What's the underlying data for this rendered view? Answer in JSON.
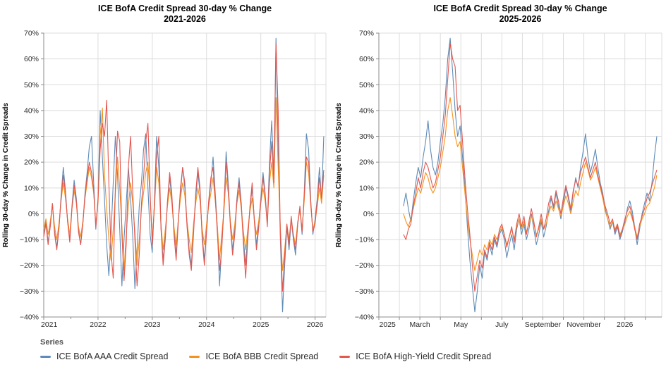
{
  "colors": {
    "aaa": "#5E8BB7",
    "bbb": "#F5921E",
    "hy": "#E4574F",
    "grid": "#DCDCDC",
    "axis": "#8C8C8C",
    "text": "#2B2B2B"
  },
  "legend": {
    "header": "Series",
    "items": [
      {
        "label": "ICE BofA AAA Credit Spread",
        "color_key": "aaa"
      },
      {
        "label": "ICE BofA BBB Credit Spread",
        "color_key": "bbb"
      },
      {
        "label": "ICE BofA High-Yield Credit Spread",
        "color_key": "hy"
      }
    ]
  },
  "chart_data": [
    {
      "type": "line",
      "title": [
        "ICE BofA Credit Spread 30-day % Change",
        "2021-2026"
      ],
      "ylabel": "Rolling 30-day % Change in Credit Spreads",
      "ylim": [
        -40,
        70
      ],
      "xlim": [
        2021.0,
        2026.2
      ],
      "grid": true,
      "legend_position": "bottom",
      "y_ticks": [
        {
          "value": 70,
          "label": "70%"
        },
        {
          "value": 60,
          "label": "60%"
        },
        {
          "value": 50,
          "label": "50%"
        },
        {
          "value": 40,
          "label": "40%"
        },
        {
          "value": 30,
          "label": "30%"
        },
        {
          "value": 20,
          "label": "20%"
        },
        {
          "value": 10,
          "label": "10%"
        },
        {
          "value": 0,
          "label": "0%"
        },
        {
          "value": -10,
          "label": "−10%"
        },
        {
          "value": -20,
          "label": "−20%"
        },
        {
          "value": -30,
          "label": "−30%"
        },
        {
          "value": -40,
          "label": "−40%"
        }
      ],
      "x_gridlines": [
        2022,
        2023,
        2024,
        2025,
        2026
      ],
      "x_ticks_major": [
        2021,
        2022,
        2023,
        2024,
        2025,
        2026
      ],
      "x_ticks_minor": [
        2021.5,
        2022.5,
        2023.5,
        2024.5,
        2025.5
      ],
      "x_tick_labels": [
        {
          "x": 2021.1,
          "text": "2021"
        },
        {
          "x": 2022,
          "text": "2022"
        },
        {
          "x": 2023,
          "text": "2023"
        },
        {
          "x": 2024,
          "text": "2024"
        },
        {
          "x": 2025,
          "text": "2025"
        },
        {
          "x": 2026,
          "text": "2026"
        }
      ],
      "series": [
        {
          "name": "ICE BofA AAA Credit Spread",
          "color_key": "aaa",
          "x_start": 2021.0,
          "x_step": 0.04,
          "values": [
            -8,
            -3,
            -11,
            -5,
            4,
            -7,
            -13,
            -6,
            7,
            18,
            9,
            -3,
            -10,
            3,
            13,
            6,
            -6,
            -12,
            -4,
            8,
            16,
            26,
            30,
            12,
            -6,
            6,
            40,
            22,
            5,
            -12,
            -24,
            -8,
            12,
            30,
            15,
            -6,
            -28,
            -10,
            4,
            18,
            6,
            -9,
            -29,
            -14,
            3,
            12,
            25,
            31,
            10,
            -8,
            -15,
            5,
            30,
            18,
            -5,
            -18,
            -8,
            4,
            14,
            6,
            -6,
            -16,
            -2,
            8,
            18,
            10,
            -4,
            -14,
            -20,
            -6,
            6,
            16,
            8,
            -8,
            -18,
            -6,
            4,
            12,
            22,
            8,
            -6,
            -28,
            -12,
            2,
            24,
            12,
            -4,
            -14,
            -6,
            6,
            14,
            4,
            -10,
            -20,
            -8,
            2,
            10,
            -2,
            -12,
            -4,
            6,
            16,
            8,
            -4,
            20,
            36,
            15,
            68,
            25,
            -10,
            -38,
            -20,
            -5,
            -14,
            -2,
            -10,
            -16,
            -4,
            2,
            -8,
            8,
            31,
            25,
            5,
            -8,
            -2,
            6,
            18,
            5,
            30
          ]
        },
        {
          "name": "ICE BofA BBB Credit Spread",
          "color_key": "bbb",
          "x_start": 2021.0,
          "x_step": 0.04,
          "values": [
            -6,
            -2,
            -8,
            -3,
            3,
            -5,
            -10,
            -4,
            5,
            12,
            6,
            -2,
            -8,
            2,
            9,
            4,
            -5,
            -9,
            -3,
            6,
            12,
            18,
            14,
            8,
            -4,
            4,
            30,
            41,
            15,
            2,
            -10,
            -18,
            -6,
            8,
            22,
            10,
            -5,
            -22,
            -8,
            3,
            12,
            4,
            -7,
            -20,
            -10,
            2,
            8,
            16,
            20,
            6,
            -10,
            2,
            18,
            12,
            -4,
            -14,
            -6,
            3,
            10,
            4,
            -5,
            -12,
            -2,
            6,
            12,
            7,
            -3,
            -10,
            -15,
            -4,
            4,
            10,
            5,
            -6,
            -12,
            -4,
            3,
            8,
            14,
            5,
            -5,
            -18,
            -8,
            1,
            14,
            8,
            -3,
            -10,
            -4,
            4,
            9,
            2,
            -7,
            -14,
            -6,
            1,
            6,
            -2,
            -8,
            -3,
            4,
            10,
            5,
            -3,
            12,
            20,
            10,
            45,
            18,
            -6,
            -22,
            -14,
            -4,
            -10,
            -2,
            -8,
            -12,
            -3,
            1,
            -6,
            5,
            20,
            16,
            3,
            -6,
            -3,
            3,
            10,
            4,
            15
          ]
        },
        {
          "name": "ICE BofA High-Yield Credit Spread",
          "color_key": "hy",
          "x_start": 2021.0,
          "x_step": 0.04,
          "values": [
            -9,
            -4,
            -12,
            -5,
            4,
            -8,
            -14,
            -6,
            6,
            15,
            8,
            -3,
            -11,
            2,
            11,
            5,
            -7,
            -12,
            -4,
            7,
            14,
            20,
            16,
            9,
            -5,
            5,
            25,
            35,
            30,
            44,
            12,
            -15,
            -25,
            10,
            32,
            28,
            -8,
            -26,
            -12,
            18,
            30,
            8,
            -10,
            -28,
            -16,
            4,
            14,
            28,
            35,
            8,
            -12,
            4,
            22,
            30,
            -6,
            -20,
            -10,
            5,
            16,
            8,
            -8,
            -18,
            -3,
            10,
            18,
            12,
            -5,
            -16,
            -22,
            -8,
            8,
            18,
            10,
            -10,
            -20,
            -7,
            5,
            14,
            18,
            6,
            -8,
            -22,
            -14,
            3,
            20,
            10,
            -5,
            -16,
            -8,
            5,
            12,
            3,
            -12,
            -25,
            -10,
            3,
            12,
            -3,
            -14,
            -6,
            5,
            14,
            7,
            -5,
            16,
            28,
            12,
            66,
            40,
            -8,
            -30,
            -16,
            -4,
            -12,
            -1,
            -9,
            -14,
            -4,
            3,
            -7,
            7,
            22,
            20,
            4,
            -7,
            -4,
            5,
            14,
            6,
            17
          ]
        }
      ]
    },
    {
      "type": "line",
      "title": [
        "ICE BofA Credit Spread 30-day % Change",
        "2025-2026"
      ],
      "ylabel": "Rolling 30-day % Change in Credit Spreads",
      "ylim": [
        -40,
        70
      ],
      "xlim": [
        2025.0,
        2026.15
      ],
      "grid": true,
      "legend_position": "bottom",
      "y_ticks": [
        {
          "value": 70,
          "label": "70%"
        },
        {
          "value": 60,
          "label": "60%"
        },
        {
          "value": 50,
          "label": "50%"
        },
        {
          "value": 40,
          "label": "40%"
        },
        {
          "value": 30,
          "label": "30%"
        },
        {
          "value": 20,
          "label": "20%"
        },
        {
          "value": 10,
          "label": "10%"
        },
        {
          "value": 0,
          "label": "0%"
        },
        {
          "value": -10,
          "label": "−10%"
        },
        {
          "value": -20,
          "label": "−20%"
        },
        {
          "value": -30,
          "label": "−30%"
        },
        {
          "value": -40,
          "label": "−40%"
        }
      ],
      "x_gridlines": [
        2025.0833,
        2025.1667,
        2025.25,
        2025.3333,
        2025.4167,
        2025.5,
        2025.5833,
        2025.6667,
        2025.75,
        2025.8333,
        2025.9167,
        2026.0,
        2026.0833
      ],
      "x_ticks_major": [
        2025.0,
        2025.0833,
        2025.1667,
        2025.25,
        2025.3333,
        2025.4167,
        2025.5,
        2025.5833,
        2025.6667,
        2025.75,
        2025.8333,
        2025.9167,
        2026.0,
        2026.0833
      ],
      "x_ticks_minor": [],
      "x_tick_labels": [
        {
          "x": 2025.035,
          "text": "2025"
        },
        {
          "x": 2025.1667,
          "text": "March"
        },
        {
          "x": 2025.3333,
          "text": "May"
        },
        {
          "x": 2025.5,
          "text": "July"
        },
        {
          "x": 2025.6667,
          "text": "September"
        },
        {
          "x": 2025.8333,
          "text": "November"
        },
        {
          "x": 2026.0,
          "text": "2026"
        }
      ],
      "series": [
        {
          "name": "ICE BofA AAA Credit Spread",
          "color_key": "aaa",
          "x_start": 2025.1,
          "x_step": 0.01,
          "values": [
            3,
            8,
            2,
            -3,
            5,
            12,
            18,
            14,
            22,
            28,
            36,
            25,
            18,
            15,
            20,
            28,
            35,
            45,
            60,
            68,
            55,
            40,
            30,
            34,
            22,
            10,
            -5,
            -18,
            -28,
            -38,
            -30,
            -20,
            -25,
            -15,
            -18,
            -12,
            -16,
            -10,
            -13,
            -8,
            -6,
            -10,
            -17,
            -12,
            -8,
            -14,
            -6,
            -2,
            -8,
            -4,
            -10,
            -6,
            0,
            -6,
            -12,
            -8,
            -3,
            -9,
            -5,
            1,
            6,
            2,
            8,
            3,
            -2,
            4,
            10,
            6,
            1,
            8,
            14,
            10,
            18,
            24,
            31,
            22,
            16,
            20,
            25,
            18,
            12,
            8,
            2,
            -2,
            -6,
            -3,
            -8,
            -5,
            -10,
            -7,
            -3,
            2,
            5,
            1,
            -5,
            -12,
            -6,
            0,
            4,
            8,
            5,
            12,
            22,
            30
          ]
        },
        {
          "name": "ICE BofA BBB Credit Spread",
          "color_key": "bbb",
          "x_start": 2025.1,
          "x_step": 0.01,
          "values": [
            0,
            -3,
            -5,
            -2,
            2,
            6,
            10,
            8,
            12,
            16,
            14,
            10,
            8,
            10,
            14,
            18,
            24,
            30,
            40,
            45,
            38,
            30,
            26,
            28,
            18,
            8,
            -2,
            -10,
            -16,
            -22,
            -18,
            -14,
            -16,
            -12,
            -14,
            -10,
            -12,
            -8,
            -10,
            -7,
            -5,
            -8,
            -12,
            -9,
            -6,
            -10,
            -5,
            -2,
            -6,
            -3,
            -7,
            -4,
            -1,
            -4,
            -8,
            -6,
            -2,
            -6,
            -4,
            0,
            3,
            1,
            5,
            2,
            -1,
            3,
            7,
            4,
            0,
            5,
            9,
            7,
            12,
            16,
            20,
            17,
            13,
            15,
            18,
            14,
            10,
            6,
            1,
            -2,
            -5,
            -3,
            -6,
            -4,
            -8,
            -6,
            -4,
            -1,
            1,
            -2,
            -5,
            -9,
            -5,
            -2,
            0,
            3,
            4,
            7,
            10,
            15
          ]
        },
        {
          "name": "ICE BofA High-Yield Credit Spread",
          "color_key": "hy",
          "x_start": 2025.1,
          "x_step": 0.01,
          "values": [
            -8,
            -10,
            -6,
            -4,
            3,
            8,
            14,
            10,
            16,
            20,
            18,
            14,
            10,
            12,
            17,
            22,
            30,
            38,
            52,
            66,
            60,
            57,
            40,
            42,
            28,
            14,
            2,
            -8,
            -20,
            -30,
            -24,
            -18,
            -21,
            -14,
            -17,
            -11,
            -14,
            -9,
            -12,
            -6,
            -4,
            -8,
            -13,
            -9,
            -5,
            -11,
            -4,
            0,
            -5,
            -1,
            -8,
            -3,
            2,
            -3,
            -9,
            -5,
            0,
            -6,
            -2,
            4,
            7,
            3,
            9,
            5,
            0,
            6,
            11,
            7,
            2,
            9,
            13,
            11,
            16,
            19,
            22,
            18,
            14,
            17,
            20,
            15,
            11,
            7,
            3,
            0,
            -4,
            -2,
            -7,
            -4,
            -9,
            -6,
            -2,
            1,
            3,
            -1,
            -6,
            -10,
            -4,
            -1,
            2,
            6,
            8,
            11,
            14,
            17
          ]
        }
      ]
    }
  ]
}
